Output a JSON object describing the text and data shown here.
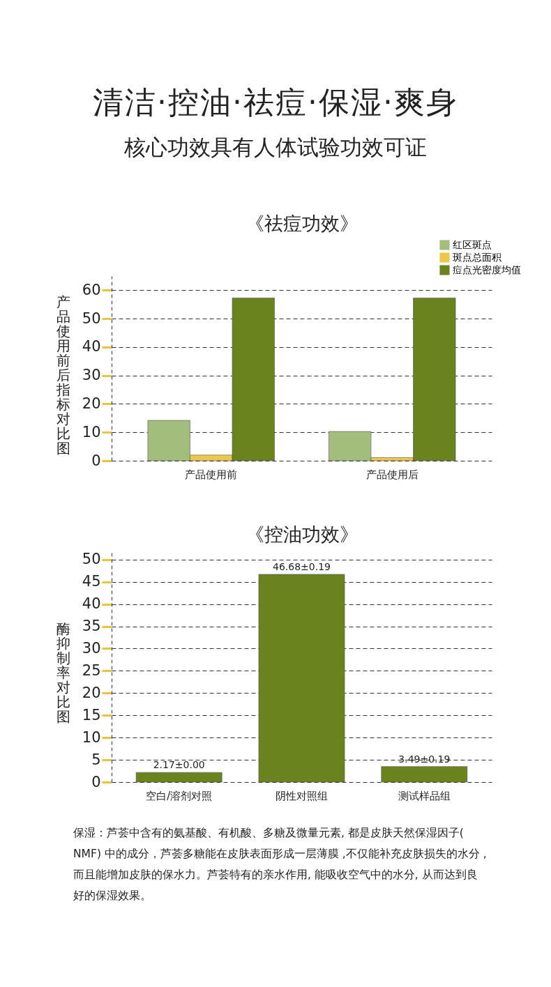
{
  "chart_data": [
    {
      "type": "other",
      "title": "清洁·控油·祛痘·保湿·爽身",
      "subtitle": "核心功效具有人体试验功效可证"
    },
    {
      "type": "bar",
      "title": "《祛痘功效》",
      "ylabel": "产品使用前后指标对比图",
      "categories": [
        "产品使用前",
        "产品使用后"
      ],
      "series": [
        {
          "name": "红区斑点",
          "color": "#a3bd7c",
          "values": [
            14.2,
            10.3
          ]
        },
        {
          "name": "斑点总面积",
          "color": "#ecc84a",
          "values": [
            2,
            1.1
          ]
        },
        {
          "name": "痘点光密度均值",
          "color": "#6a831f",
          "values": [
            57.3,
            57.3
          ]
        }
      ],
      "ylim": [
        0,
        65
      ],
      "yticks": [
        0,
        10,
        20,
        30,
        40,
        50,
        60
      ],
      "grid": "y",
      "legend": "top right"
    },
    {
      "type": "bar",
      "title": "《控油功效》",
      "ylabel": "酶抑制率对比图",
      "categories": [
        "空白/溶剂对照",
        "阴性对照组",
        "测试样品组"
      ],
      "values": [
        2.17,
        46.68,
        3.49
      ],
      "color": "#6a831f",
      "value_labels": [
        "2.17±0.00",
        "46.68±0.19",
        "3.49±0.19"
      ],
      "ylim": [
        0,
        52
      ],
      "yticks": [
        0,
        5,
        10,
        15,
        20,
        25,
        30,
        35,
        40,
        45,
        50
      ],
      "grid": "y"
    },
    {
      "type": "other",
      "annotations": [
        "保湿：芦荟中含有的氨基酸、有机酸、多糖及微量元素, 都是皮肤天然保湿因子( NMF) 中的成分，芦荟多糖能在皮肤表面形成一层薄膜 ,不仅能补充皮肤损失的水分 ,而且能增加皮肤的保水力。芦荟特有的亲水作用, 能吸收空气中的水分, 从而达到良好的保湿效果。"
      ]
    }
  ]
}
